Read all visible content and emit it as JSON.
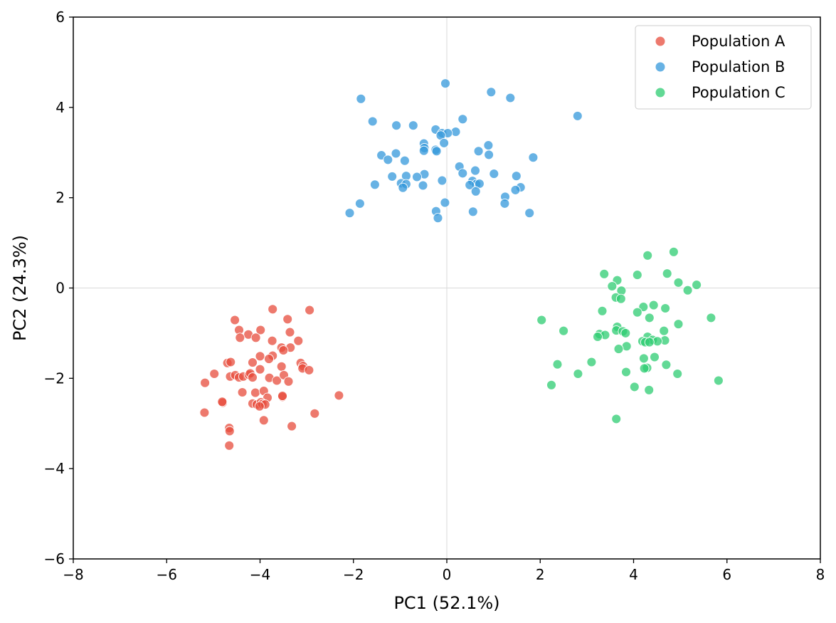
{
  "chart_data": {
    "type": "scatter",
    "title": "",
    "xlabel": "PC1 (52.1%)",
    "ylabel": "PC2 (24.3%)",
    "xlim": [
      -8,
      8
    ],
    "ylim": [
      -6,
      6
    ],
    "xticks": [
      -8,
      -6,
      -4,
      -2,
      0,
      2,
      4,
      6,
      8
    ],
    "yticks": [
      -6,
      -4,
      -2,
      0,
      2,
      4,
      6
    ],
    "xtick_labels": [
      "−8",
      "−6",
      "−4",
      "−2",
      "0",
      "2",
      "4",
      "6",
      "8"
    ],
    "ytick_labels": [
      "−6",
      "−4",
      "−2",
      "0",
      "2",
      "4",
      "6"
    ],
    "zero_lines": true,
    "legend_position": "top-right",
    "series": [
      {
        "name": "Population A",
        "color": "#e74c3c",
        "points": [
          [
            -3.73,
            -0.47
          ],
          [
            -2.94,
            -0.49
          ],
          [
            -4.54,
            -0.71
          ],
          [
            -3.41,
            -0.69
          ],
          [
            -4.45,
            -0.93
          ],
          [
            -3.99,
            -0.93
          ],
          [
            -4.25,
            -1.03
          ],
          [
            -3.36,
            -0.98
          ],
          [
            -4.43,
            -1.1
          ],
          [
            -4.09,
            -1.1
          ],
          [
            -3.74,
            -1.17
          ],
          [
            -3.18,
            -1.17
          ],
          [
            -3.54,
            -1.32
          ],
          [
            -3.35,
            -1.32
          ],
          [
            -3.5,
            -1.38
          ],
          [
            -4.0,
            -1.51
          ],
          [
            -3.73,
            -1.5
          ],
          [
            -4.7,
            -1.66
          ],
          [
            -4.63,
            -1.64
          ],
          [
            -4.16,
            -1.65
          ],
          [
            -3.81,
            -1.57
          ],
          [
            -3.13,
            -1.66
          ],
          [
            -3.08,
            -1.73
          ],
          [
            -3.09,
            -1.78
          ],
          [
            -3.54,
            -1.74
          ],
          [
            -2.95,
            -1.82
          ],
          [
            -4.0,
            -1.8
          ],
          [
            -5.18,
            -2.1
          ],
          [
            -4.98,
            -1.9
          ],
          [
            -4.64,
            -1.96
          ],
          [
            -4.53,
            -1.93
          ],
          [
            -4.45,
            -1.98
          ],
          [
            -4.36,
            -1.96
          ],
          [
            -4.24,
            -1.92
          ],
          [
            -4.21,
            -1.89
          ],
          [
            -4.16,
            -1.98
          ],
          [
            -3.8,
            -1.99
          ],
          [
            -3.64,
            -2.05
          ],
          [
            -3.49,
            -1.93
          ],
          [
            -3.39,
            -2.07
          ],
          [
            -4.38,
            -2.31
          ],
          [
            -4.1,
            -2.32
          ],
          [
            -3.92,
            -2.28
          ],
          [
            -3.52,
            -2.41
          ],
          [
            -3.52,
            -2.39
          ],
          [
            -2.31,
            -2.38
          ],
          [
            -3.84,
            -2.43
          ],
          [
            -4.16,
            -2.56
          ],
          [
            -4.07,
            -2.58
          ],
          [
            -3.98,
            -2.53
          ],
          [
            -3.95,
            -2.57
          ],
          [
            -3.89,
            -2.58
          ],
          [
            -4.01,
            -2.62
          ],
          [
            -4.8,
            -2.54
          ],
          [
            -4.81,
            -2.52
          ],
          [
            -5.19,
            -2.76
          ],
          [
            -2.83,
            -2.78
          ],
          [
            -3.92,
            -2.93
          ],
          [
            -3.32,
            -3.06
          ],
          [
            -4.66,
            -3.1
          ],
          [
            -4.65,
            -3.17
          ],
          [
            -4.66,
            -3.49
          ]
        ]
      },
      {
        "name": "Population B",
        "color": "#3498db",
        "points": [
          [
            -0.03,
            4.53
          ],
          [
            0.95,
            4.34
          ],
          [
            1.36,
            4.21
          ],
          [
            -1.84,
            4.19
          ],
          [
            2.8,
            3.81
          ],
          [
            0.34,
            3.74
          ],
          [
            -1.59,
            3.69
          ],
          [
            -1.08,
            3.6
          ],
          [
            -0.72,
            3.6
          ],
          [
            -0.24,
            3.51
          ],
          [
            0.19,
            3.46
          ],
          [
            -0.1,
            3.43
          ],
          [
            0.02,
            3.43
          ],
          [
            -0.13,
            3.38
          ],
          [
            -0.49,
            3.2
          ],
          [
            -0.06,
            3.21
          ],
          [
            0.89,
            3.16
          ],
          [
            -0.48,
            3.1
          ],
          [
            -0.49,
            3.04
          ],
          [
            -0.24,
            3.06
          ],
          [
            -0.22,
            3.03
          ],
          [
            0.68,
            3.03
          ],
          [
            0.9,
            2.95
          ],
          [
            -1.09,
            2.98
          ],
          [
            -1.4,
            2.94
          ],
          [
            -1.26,
            2.84
          ],
          [
            -0.9,
            2.82
          ],
          [
            1.85,
            2.89
          ],
          [
            0.27,
            2.69
          ],
          [
            0.61,
            2.6
          ],
          [
            -0.48,
            2.52
          ],
          [
            -1.17,
            2.47
          ],
          [
            -0.87,
            2.48
          ],
          [
            -0.64,
            2.46
          ],
          [
            0.34,
            2.54
          ],
          [
            1.01,
            2.53
          ],
          [
            1.49,
            2.48
          ],
          [
            -0.98,
            2.32
          ],
          [
            -0.87,
            2.3
          ],
          [
            -0.1,
            2.38
          ],
          [
            0.55,
            2.37
          ],
          [
            0.63,
            2.3
          ],
          [
            0.7,
            2.31
          ],
          [
            0.49,
            2.28
          ],
          [
            1.58,
            2.23
          ],
          [
            -1.54,
            2.29
          ],
          [
            -0.51,
            2.27
          ],
          [
            -0.94,
            2.22
          ],
          [
            0.62,
            2.14
          ],
          [
            1.47,
            2.17
          ],
          [
            1.25,
            2.02
          ],
          [
            -0.04,
            1.89
          ],
          [
            1.24,
            1.87
          ],
          [
            -1.86,
            1.87
          ],
          [
            -2.08,
            1.66
          ],
          [
            -0.23,
            1.7
          ],
          [
            0.56,
            1.69
          ],
          [
            1.77,
            1.66
          ],
          [
            -0.19,
            1.55
          ]
        ]
      },
      {
        "name": "Population C",
        "color": "#2ecc71",
        "points": [
          [
            4.86,
            0.8
          ],
          [
            4.3,
            0.72
          ],
          [
            4.72,
            0.32
          ],
          [
            3.37,
            0.31
          ],
          [
            4.08,
            0.29
          ],
          [
            3.65,
            0.17
          ],
          [
            4.96,
            0.12
          ],
          [
            3.54,
            0.04
          ],
          [
            5.35,
            0.07
          ],
          [
            3.74,
            -0.06
          ],
          [
            5.16,
            -0.05
          ],
          [
            3.62,
            -0.21
          ],
          [
            3.73,
            -0.24
          ],
          [
            4.43,
            -0.38
          ],
          [
            4.21,
            -0.42
          ],
          [
            4.68,
            -0.45
          ],
          [
            3.33,
            -0.51
          ],
          [
            4.08,
            -0.54
          ],
          [
            4.34,
            -0.66
          ],
          [
            5.66,
            -0.66
          ],
          [
            2.03,
            -0.71
          ],
          [
            4.96,
            -0.8
          ],
          [
            3.65,
            -0.86
          ],
          [
            3.63,
            -0.94
          ],
          [
            2.5,
            -0.95
          ],
          [
            3.77,
            -0.96
          ],
          [
            4.65,
            -0.95
          ],
          [
            3.83,
            -1.0
          ],
          [
            3.27,
            -1.02
          ],
          [
            3.39,
            -1.04
          ],
          [
            3.23,
            -1.08
          ],
          [
            4.3,
            -1.08
          ],
          [
            4.41,
            -1.15
          ],
          [
            4.19,
            -1.18
          ],
          [
            4.67,
            -1.16
          ],
          [
            4.51,
            -1.18
          ],
          [
            4.25,
            -1.2
          ],
          [
            4.34,
            -1.2
          ],
          [
            3.85,
            -1.29
          ],
          [
            3.68,
            -1.35
          ],
          [
            4.45,
            -1.53
          ],
          [
            4.22,
            -1.56
          ],
          [
            3.1,
            -1.64
          ],
          [
            4.7,
            -1.7
          ],
          [
            2.37,
            -1.69
          ],
          [
            4.29,
            -1.77
          ],
          [
            4.23,
            -1.78
          ],
          [
            3.84,
            -1.86
          ],
          [
            4.94,
            -1.9
          ],
          [
            2.81,
            -1.9
          ],
          [
            5.82,
            -2.05
          ],
          [
            2.24,
            -2.15
          ],
          [
            4.02,
            -2.19
          ],
          [
            4.33,
            -2.26
          ],
          [
            3.63,
            -2.9
          ]
        ]
      }
    ]
  }
}
